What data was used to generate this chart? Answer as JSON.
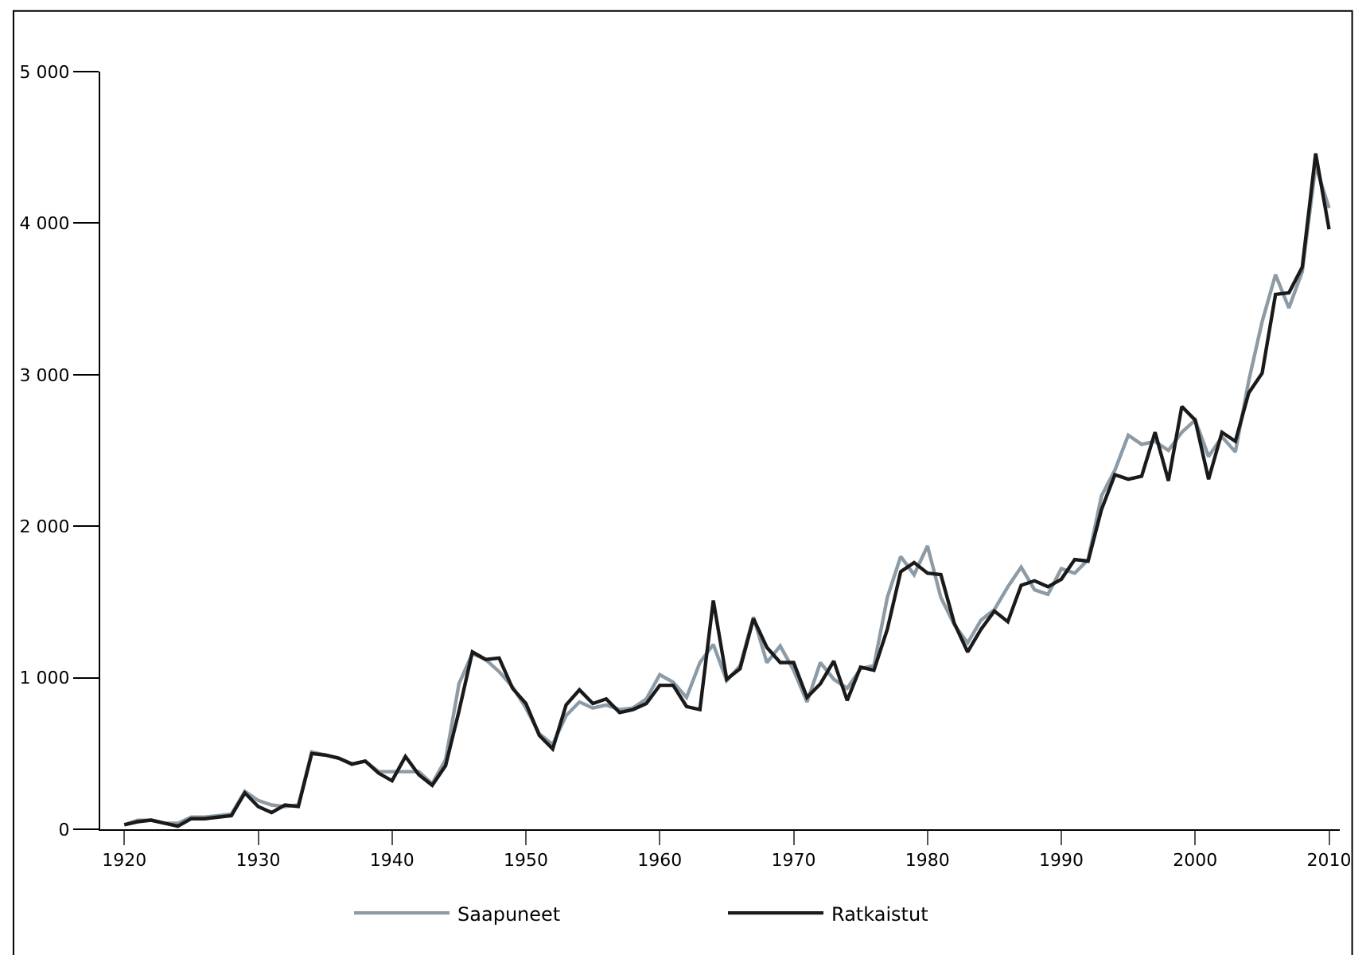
{
  "chart_data": {
    "type": "line",
    "x": [
      1920,
      1921,
      1922,
      1923,
      1924,
      1925,
      1926,
      1927,
      1928,
      1929,
      1930,
      1931,
      1932,
      1933,
      1934,
      1935,
      1936,
      1937,
      1938,
      1939,
      1940,
      1941,
      1942,
      1943,
      1944,
      1945,
      1946,
      1947,
      1948,
      1949,
      1950,
      1951,
      1952,
      1953,
      1954,
      1955,
      1956,
      1957,
      1958,
      1959,
      1960,
      1961,
      1962,
      1963,
      1964,
      1965,
      1966,
      1967,
      1968,
      1969,
      1970,
      1971,
      1972,
      1973,
      1974,
      1975,
      1976,
      1977,
      1978,
      1979,
      1980,
      1981,
      1982,
      1983,
      1984,
      1985,
      1986,
      1987,
      1988,
      1989,
      1990,
      1991,
      1992,
      1993,
      1994,
      1995,
      1996,
      1997,
      1998,
      1999,
      2000,
      2001,
      2002,
      2003,
      2004,
      2005,
      2006,
      2007,
      2008,
      2009,
      2010
    ],
    "series": [
      {
        "name": "Saapuneet",
        "color": "#8c9ba6",
        "values": [
          30,
          60,
          60,
          40,
          40,
          80,
          80,
          90,
          100,
          250,
          190,
          160,
          150,
          160,
          510,
          490,
          470,
          430,
          450,
          380,
          380,
          380,
          380,
          300,
          460,
          960,
          1160,
          1120,
          1040,
          940,
          800,
          630,
          560,
          750,
          840,
          800,
          820,
          790,
          800,
          860,
          1020,
          970,
          870,
          1100,
          1220,
          980,
          1080,
          1400,
          1100,
          1210,
          1050,
          840,
          1100,
          990,
          930,
          1060,
          1080,
          1530,
          1800,
          1680,
          1870,
          1530,
          1350,
          1230,
          1380,
          1450,
          1600,
          1730,
          1580,
          1550,
          1720,
          1690,
          1780,
          2200,
          2370,
          2600,
          2540,
          2560,
          2500,
          2620,
          2700,
          2460,
          2590,
          2490,
          2960,
          3350,
          3660,
          3440,
          3680,
          4380,
          4100
        ]
      },
      {
        "name": "Ratkaistut",
        "color": "#1a1a1a",
        "values": [
          30,
          50,
          60,
          40,
          20,
          70,
          70,
          80,
          90,
          240,
          150,
          110,
          160,
          150,
          500,
          490,
          470,
          430,
          450,
          370,
          320,
          480,
          360,
          290,
          420,
          780,
          1170,
          1120,
          1130,
          930,
          830,
          620,
          530,
          820,
          920,
          830,
          860,
          770,
          790,
          830,
          950,
          950,
          810,
          790,
          1510,
          990,
          1060,
          1390,
          1200,
          1100,
          1100,
          870,
          960,
          1110,
          850,
          1070,
          1050,
          1320,
          1700,
          1760,
          1690,
          1680,
          1360,
          1170,
          1320,
          1440,
          1370,
          1610,
          1640,
          1600,
          1650,
          1780,
          1770,
          2110,
          2340,
          2310,
          2330,
          2620,
          2300,
          2790,
          2700,
          2310,
          2620,
          2560,
          2880,
          3010,
          3530,
          3540,
          3710,
          4460,
          3960
        ]
      }
    ],
    "xlim": [
      1918.2,
      2010.8
    ],
    "xticks": [
      1920,
      1930,
      1940,
      1950,
      1960,
      1970,
      1980,
      1990,
      2000,
      2010
    ],
    "ylim": [
      0,
      5000
    ],
    "yticks": [
      {
        "value": 0,
        "label": "0"
      },
      {
        "value": 1000,
        "label": "1 000"
      },
      {
        "value": 2000,
        "label": "2 000"
      },
      {
        "value": 3000,
        "label": "3 000"
      },
      {
        "value": 4000,
        "label": "4 000"
      },
      {
        "value": 5000,
        "label": "5 000"
      }
    ],
    "legend": "bottom",
    "marker": "none",
    "line_style": "solid"
  }
}
